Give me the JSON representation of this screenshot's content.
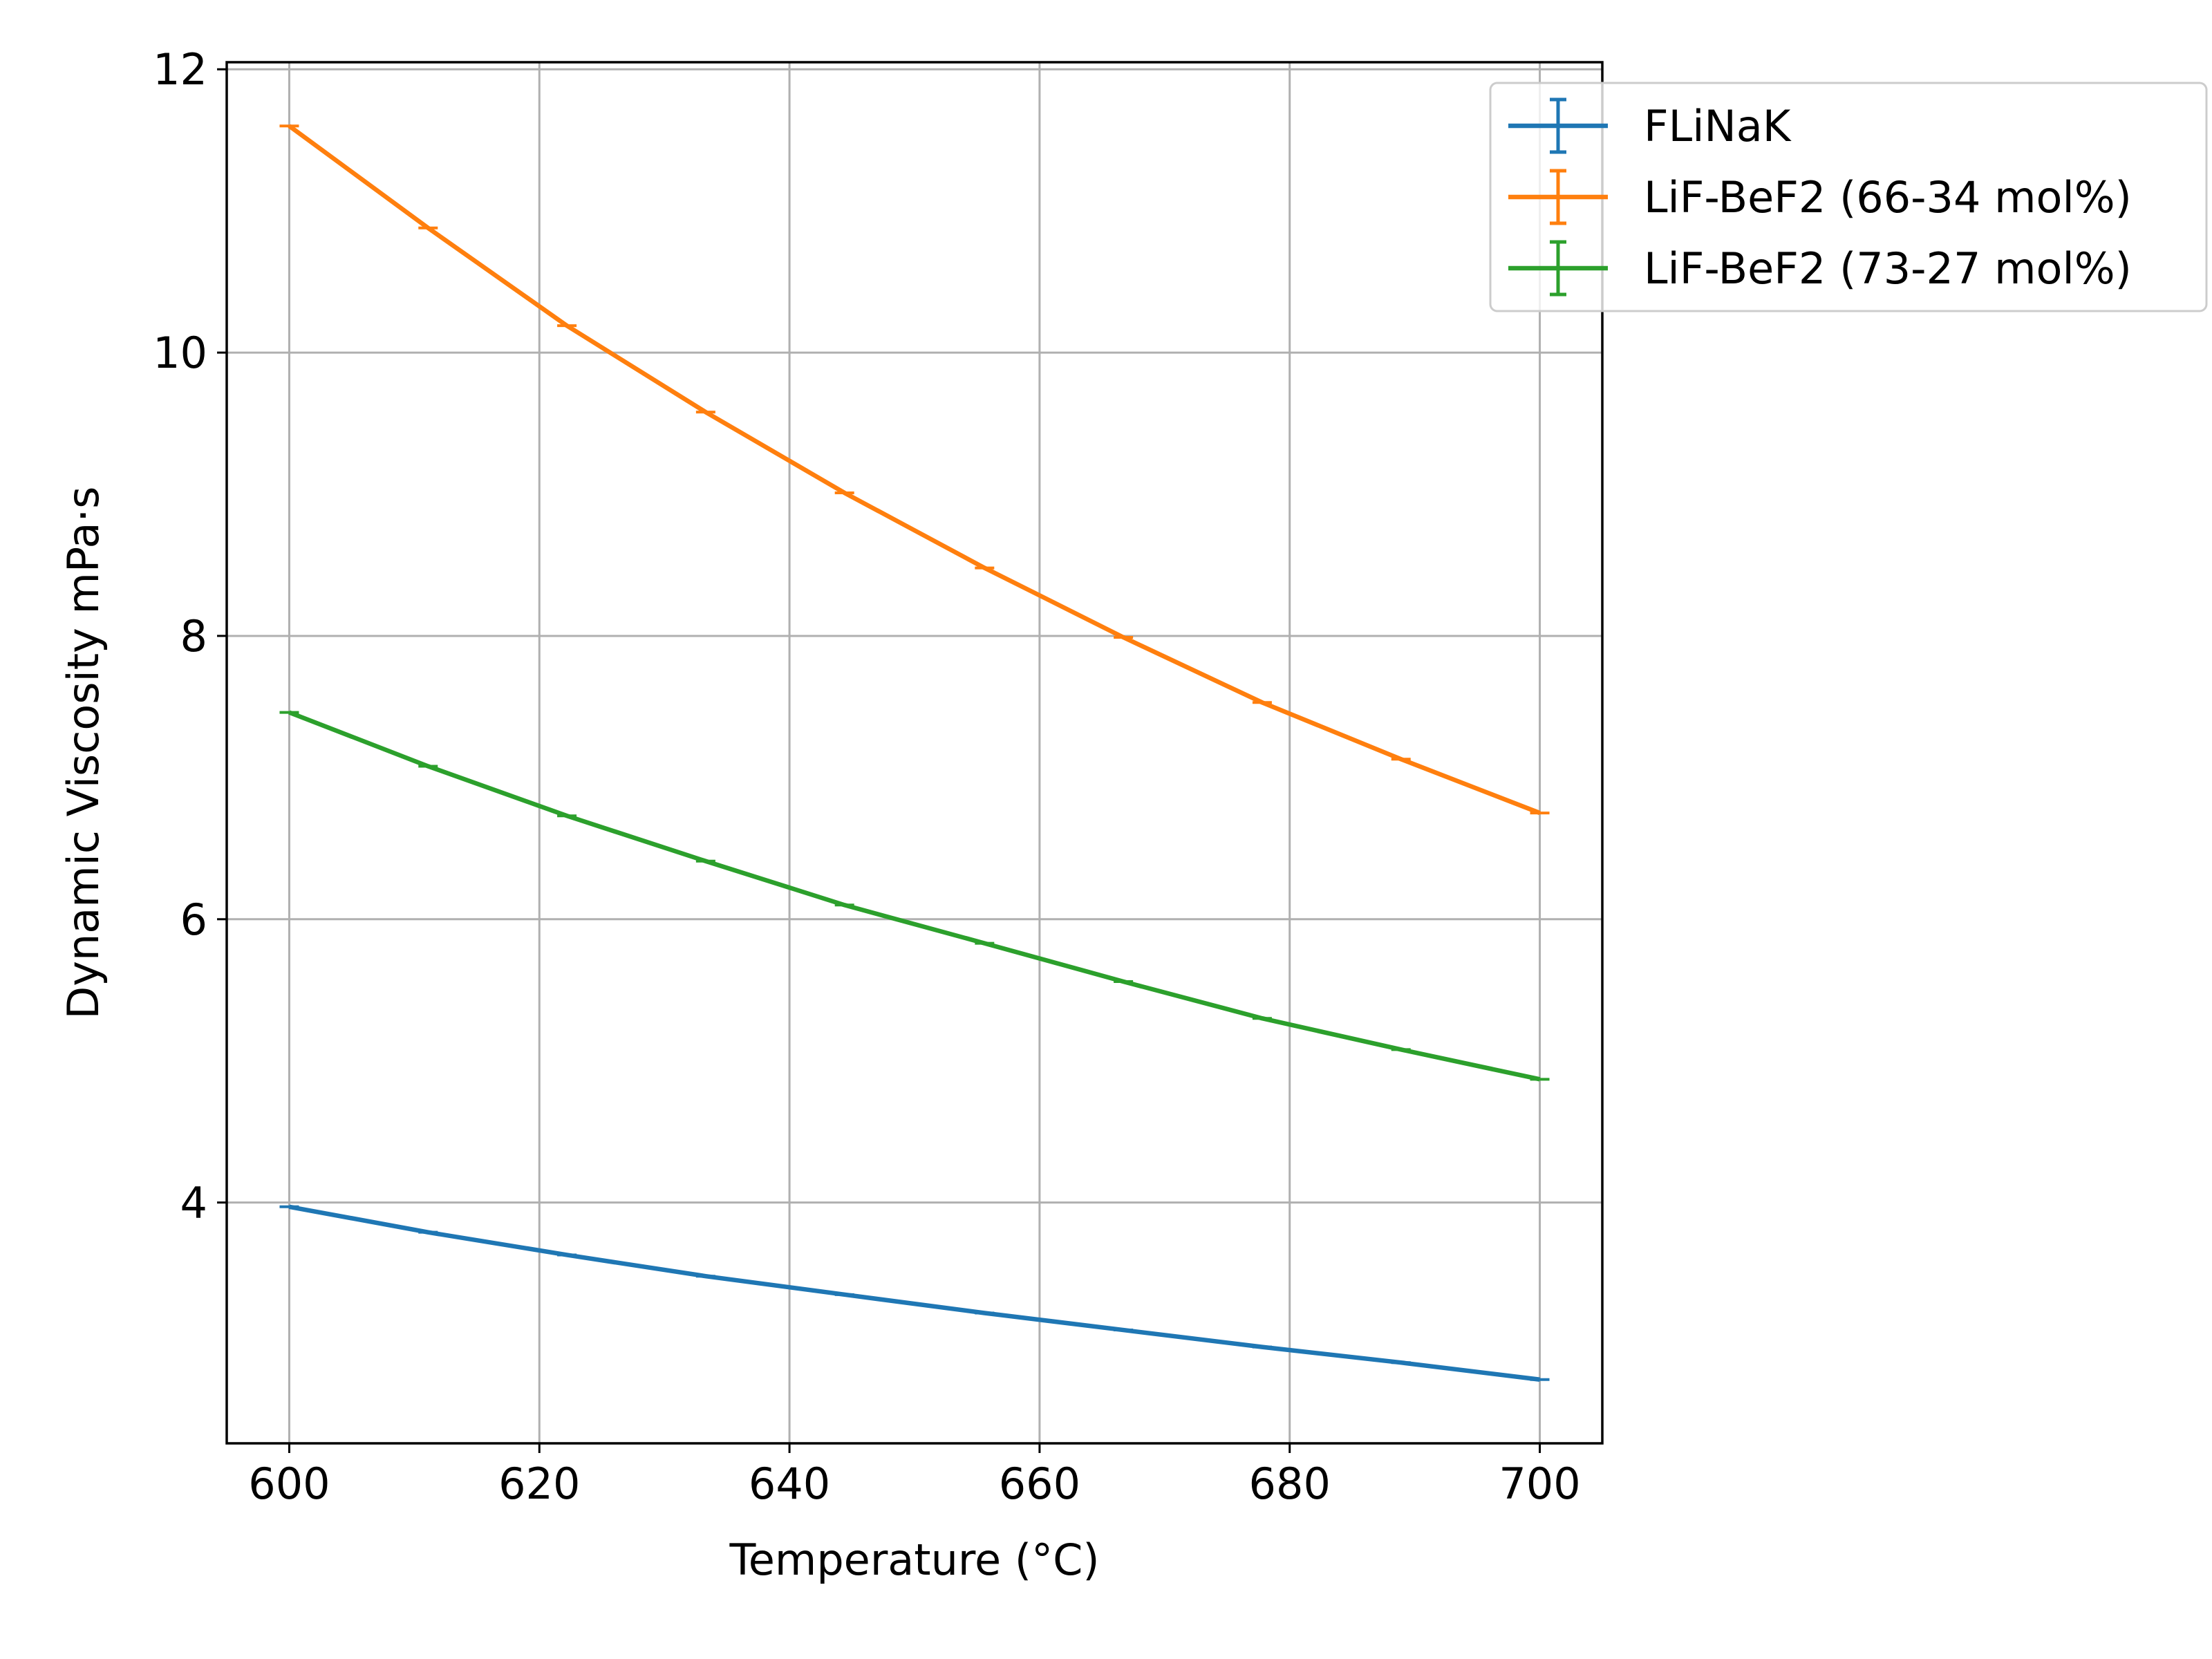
{
  "chart_data": {
    "type": "line",
    "title": "",
    "xlabel": "Temperature ($^\\circ$C)",
    "ylabel": "Dynamic Viscosity mPa$\\cdot$s",
    "xlabel_display": "Temperature (°C)",
    "ylabel_display": "Dynamic Viscosity mPa·s",
    "xlim": [
      595,
      705
    ],
    "ylim": [
      2.3,
      12.05
    ],
    "xticks": [
      600,
      620,
      640,
      660,
      680,
      700
    ],
    "yticks": [
      4,
      6,
      8,
      10,
      12
    ],
    "xtick_labels": [
      "600",
      "620",
      "640",
      "660",
      "680",
      "700"
    ],
    "ytick_labels": [
      "4",
      "6",
      "8",
      "10",
      "12"
    ],
    "grid": true,
    "legend_position": "upper right, outside plot area",
    "error_bars": true,
    "x": [
      600,
      611.1,
      622.2,
      633.3,
      644.4,
      655.6,
      666.7,
      677.8,
      688.9,
      700
    ],
    "series": [
      {
        "name": "FLiNaK",
        "color": "#1f77b4",
        "values": [
          3.97,
          3.79,
          3.63,
          3.48,
          3.35,
          3.22,
          3.1,
          2.98,
          2.87,
          2.75
        ]
      },
      {
        "name": "LiF-BeF2 (66-34 mol%)",
        "color": "#ff7f0e",
        "values": [
          11.6,
          10.88,
          10.19,
          9.58,
          9.01,
          8.48,
          7.99,
          7.53,
          7.13,
          6.75
        ]
      },
      {
        "name": "LiF-BeF2 (73-27 mol%)",
        "color": "#2ca02c",
        "values": [
          7.46,
          7.08,
          6.73,
          6.41,
          6.1,
          5.83,
          5.56,
          5.3,
          5.08,
          4.87
        ]
      }
    ]
  }
}
